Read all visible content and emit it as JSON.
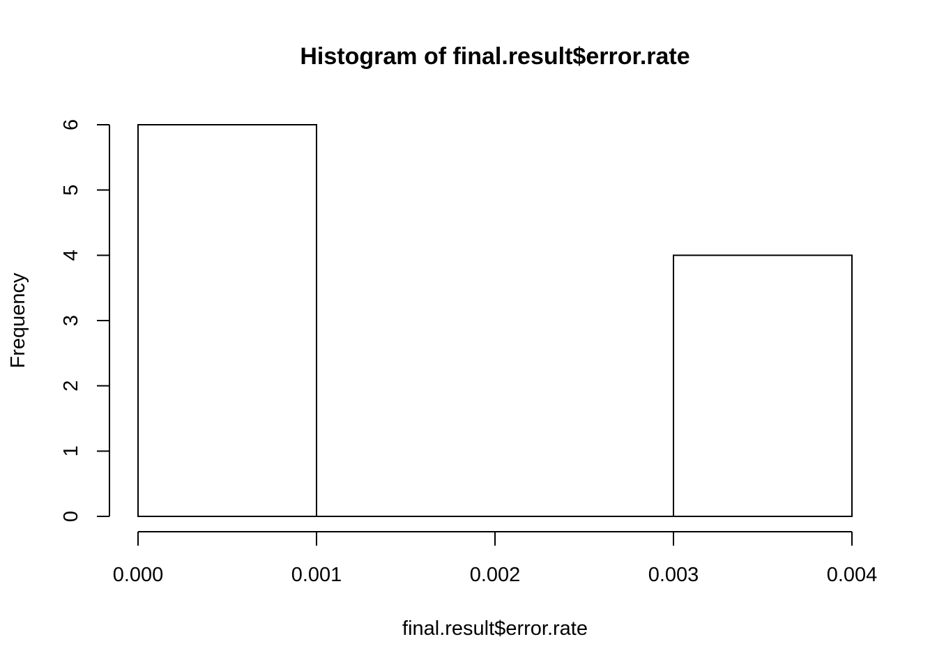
{
  "chart_data": {
    "type": "bar",
    "title": "Histogram of final.result$error.rate",
    "xlabel": "final.result$error.rate",
    "ylabel": "Frequency",
    "bins": [
      {
        "start": 0.0,
        "end": 0.001,
        "count": 6
      },
      {
        "start": 0.001,
        "end": 0.002,
        "count": 0
      },
      {
        "start": 0.002,
        "end": 0.003,
        "count": 0
      },
      {
        "start": 0.003,
        "end": 0.004,
        "count": 4
      }
    ],
    "xlim": [
      0.0,
      0.004
    ],
    "ylim": [
      0,
      6
    ],
    "x_ticks": [
      "0.000",
      "0.001",
      "0.002",
      "0.003",
      "0.004"
    ],
    "y_ticks": [
      "0",
      "1",
      "2",
      "3",
      "4",
      "5",
      "6"
    ],
    "colors": {
      "bar_fill": "#ffffff",
      "bar_stroke": "#000000"
    },
    "grid": false
  }
}
